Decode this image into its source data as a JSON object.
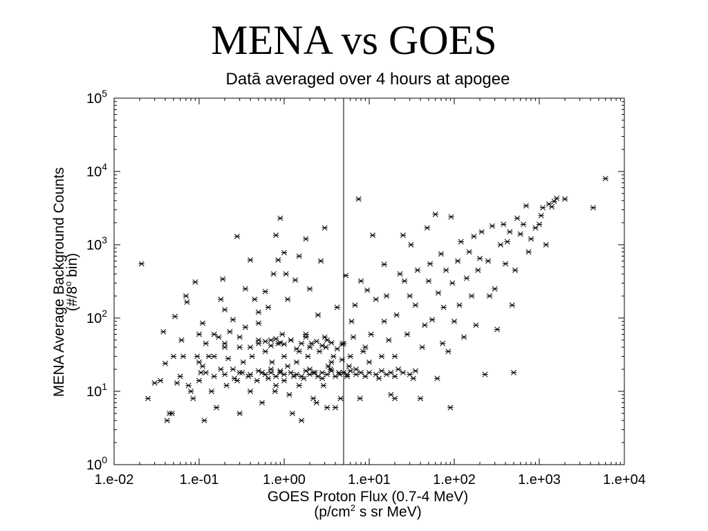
{
  "slide": {
    "title": "MENA vs GOES"
  },
  "chart_data": {
    "type": "scatter",
    "title": "Datā averaged over 4 hours at apogee",
    "xlabel": "GOES Proton Flux (0.7-4 MeV)",
    "xlabel_units": {
      "pre": "(p/cm",
      "sup": "2",
      "post": " s sr MeV)"
    },
    "ylabel": "MENA Average Background Counts",
    "ylabel_units": {
      "pre": "(#/8",
      "sup": "o",
      "post": " bin)"
    },
    "x_scale": "log",
    "y_scale": "log",
    "xlim": [
      0.01,
      10000
    ],
    "ylim": [
      1,
      100000
    ],
    "x_tick_labels": [
      "1.e-02",
      "1.e-01",
      "1.e+00",
      "1.e+01",
      "1.e+02",
      "1.e+03",
      "1.e+04"
    ],
    "y_tick_labels": [
      {
        "base": "10",
        "exp": "0"
      },
      {
        "base": "10",
        "exp": "1"
      },
      {
        "base": "10",
        "exp": "2"
      },
      {
        "base": "10",
        "exp": "3"
      },
      {
        "base": "10",
        "exp": "4"
      },
      {
        "base": "10",
        "exp": "5"
      }
    ],
    "reference_line_x": 5,
    "marker": "asterisk",
    "marker_color": "#000000",
    "grid": false,
    "points": [
      [
        0.021,
        550
      ],
      [
        0.025,
        8
      ],
      [
        0.03,
        13
      ],
      [
        0.035,
        14
      ],
      [
        0.038,
        65
      ],
      [
        0.04,
        24
      ],
      [
        0.042,
        4
      ],
      [
        0.045,
        5
      ],
      [
        0.048,
        5
      ],
      [
        0.05,
        30
      ],
      [
        0.052,
        105
      ],
      [
        0.055,
        13
      ],
      [
        0.06,
        16
      ],
      [
        0.062,
        50
      ],
      [
        0.065,
        30
      ],
      [
        0.07,
        200
      ],
      [
        0.072,
        165
      ],
      [
        0.075,
        12
      ],
      [
        0.08,
        10
      ],
      [
        0.085,
        8
      ],
      [
        0.09,
        310
      ],
      [
        0.095,
        30
      ],
      [
        0.1,
        25
      ],
      [
        0.1,
        60
      ],
      [
        0.105,
        18
      ],
      [
        0.11,
        22
      ],
      [
        0.11,
        85
      ],
      [
        0.115,
        4
      ],
      [
        0.12,
        45
      ],
      [
        0.13,
        30
      ],
      [
        0.14,
        10
      ],
      [
        0.15,
        30
      ],
      [
        0.15,
        60
      ],
      [
        0.16,
        6
      ],
      [
        0.17,
        55
      ],
      [
        0.18,
        180
      ],
      [
        0.18,
        20
      ],
      [
        0.19,
        340
      ],
      [
        0.2,
        40
      ],
      [
        0.2,
        130
      ],
      [
        0.21,
        12
      ],
      [
        0.22,
        28
      ],
      [
        0.23,
        65
      ],
      [
        0.25,
        95
      ],
      [
        0.26,
        15
      ],
      [
        0.28,
        14
      ],
      [
        0.28,
        1300
      ],
      [
        0.3,
        40
      ],
      [
        0.3,
        5
      ],
      [
        0.32,
        18
      ],
      [
        0.33,
        25
      ],
      [
        0.35,
        75
      ],
      [
        0.35,
        250
      ],
      [
        0.38,
        16
      ],
      [
        0.4,
        620
      ],
      [
        0.4,
        10
      ],
      [
        0.42,
        30
      ],
      [
        0.45,
        180
      ],
      [
        0.48,
        14
      ],
      [
        0.5,
        45
      ],
      [
        0.5,
        120
      ],
      [
        0.5,
        85
      ],
      [
        0.55,
        18
      ],
      [
        0.55,
        7
      ],
      [
        0.6,
        35
      ],
      [
        0.6,
        230
      ],
      [
        0.65,
        15
      ],
      [
        0.65,
        140
      ],
      [
        0.7,
        50
      ],
      [
        0.7,
        20
      ],
      [
        0.72,
        25
      ],
      [
        0.75,
        400
      ],
      [
        0.78,
        10
      ],
      [
        0.8,
        12
      ],
      [
        0.8,
        1350
      ],
      [
        0.85,
        45
      ],
      [
        0.85,
        620
      ],
      [
        0.9,
        2300
      ],
      [
        0.9,
        18
      ],
      [
        0.95,
        60
      ],
      [
        1.0,
        30
      ],
      [
        1.0,
        14
      ],
      [
        1.0,
        780
      ],
      [
        1.05,
        400
      ],
      [
        1.1,
        180
      ],
      [
        1.1,
        22
      ],
      [
        1.15,
        9
      ],
      [
        1.2,
        50
      ],
      [
        1.25,
        5
      ],
      [
        1.3,
        16
      ],
      [
        1.35,
        330
      ],
      [
        1.4,
        25
      ],
      [
        1.5,
        700
      ],
      [
        1.5,
        35
      ],
      [
        1.5,
        12
      ],
      [
        1.6,
        4
      ],
      [
        1.7,
        15
      ],
      [
        1.8,
        1200
      ],
      [
        1.8,
        60
      ],
      [
        1.9,
        30
      ],
      [
        2.0,
        20
      ],
      [
        2.0,
        250
      ],
      [
        2.1,
        45
      ],
      [
        2.2,
        8
      ],
      [
        2.3,
        18
      ],
      [
        2.4,
        7
      ],
      [
        2.5,
        110
      ],
      [
        2.6,
        35
      ],
      [
        2.7,
        600
      ],
      [
        2.8,
        15
      ],
      [
        2.9,
        12
      ],
      [
        3.0,
        1700
      ],
      [
        3.0,
        55
      ],
      [
        3.1,
        40
      ],
      [
        3.2,
        6
      ],
      [
        3.3,
        22
      ],
      [
        3.5,
        20
      ],
      [
        3.6,
        25
      ],
      [
        3.8,
        30
      ],
      [
        4.0,
        6
      ],
      [
        4.2,
        140
      ],
      [
        4.4,
        18
      ],
      [
        4.6,
        8
      ],
      [
        4.8,
        27
      ],
      [
        5.0,
        45
      ],
      [
        5.3,
        380
      ],
      [
        5.5,
        16
      ],
      [
        5.8,
        22
      ],
      [
        6.0,
        30
      ],
      [
        6.2,
        90
      ],
      [
        6.5,
        55
      ],
      [
        6.8,
        150
      ],
      [
        7.0,
        20
      ],
      [
        7.5,
        4200
      ],
      [
        7.8,
        8
      ],
      [
        8.0,
        320
      ],
      [
        8.5,
        35
      ],
      [
        9.0,
        40
      ],
      [
        9.5,
        240
      ],
      [
        10,
        25
      ],
      [
        10.5,
        60
      ],
      [
        11,
        1350
      ],
      [
        12,
        180
      ],
      [
        13,
        15
      ],
      [
        14,
        30
      ],
      [
        15,
        90
      ],
      [
        15,
        540
      ],
      [
        16,
        200
      ],
      [
        17,
        50
      ],
      [
        18,
        9
      ],
      [
        20,
        30
      ],
      [
        20,
        8
      ],
      [
        21,
        110
      ],
      [
        22,
        20
      ],
      [
        23,
        400
      ],
      [
        25,
        1350
      ],
      [
        26,
        320
      ],
      [
        28,
        60
      ],
      [
        30,
        200
      ],
      [
        31,
        1000
      ],
      [
        33,
        15
      ],
      [
        35,
        150
      ],
      [
        37,
        450
      ],
      [
        40,
        8
      ],
      [
        42,
        40
      ],
      [
        45,
        80
      ],
      [
        48,
        1700
      ],
      [
        50,
        320
      ],
      [
        52,
        550
      ],
      [
        55,
        95
      ],
      [
        60,
        2600
      ],
      [
        63,
        15
      ],
      [
        65,
        220
      ],
      [
        70,
        750
      ],
      [
        73,
        45
      ],
      [
        75,
        140
      ],
      [
        80,
        450
      ],
      [
        85,
        35
      ],
      [
        90,
        6
      ],
      [
        92,
        2400
      ],
      [
        95,
        300
      ],
      [
        100,
        90
      ],
      [
        110,
        600
      ],
      [
        115,
        150
      ],
      [
        120,
        1100
      ],
      [
        130,
        55
      ],
      [
        140,
        350
      ],
      [
        150,
        800
      ],
      [
        160,
        200
      ],
      [
        170,
        1300
      ],
      [
        180,
        80
      ],
      [
        190,
        450
      ],
      [
        200,
        650
      ],
      [
        210,
        1500
      ],
      [
        230,
        17
      ],
      [
        250,
        600
      ],
      [
        260,
        200
      ],
      [
        280,
        1800
      ],
      [
        300,
        250
      ],
      [
        320,
        70
      ],
      [
        350,
        1000
      ],
      [
        380,
        1900
      ],
      [
        400,
        550
      ],
      [
        420,
        1100
      ],
      [
        450,
        1500
      ],
      [
        480,
        150
      ],
      [
        500,
        18
      ],
      [
        520,
        450
      ],
      [
        550,
        2300
      ],
      [
        600,
        1400
      ],
      [
        650,
        1900
      ],
      [
        700,
        3400
      ],
      [
        750,
        800
      ],
      [
        800,
        1200
      ],
      [
        900,
        1700
      ],
      [
        1000,
        1900
      ],
      [
        1050,
        2500
      ],
      [
        1100,
        3200
      ],
      [
        1200,
        1000
      ],
      [
        1300,
        3600
      ],
      [
        1400,
        3300
      ],
      [
        1500,
        3900
      ],
      [
        1600,
        4300
      ],
      [
        2000,
        4200
      ],
      [
        4300,
        3200
      ],
      [
        6000,
        8000
      ],
      [
        0.1,
        14
      ],
      [
        0.12,
        18
      ],
      [
        0.15,
        16
      ],
      [
        0.2,
        17
      ],
      [
        0.25,
        20
      ],
      [
        0.3,
        18
      ],
      [
        0.4,
        17
      ],
      [
        0.5,
        19
      ],
      [
        0.6,
        17
      ],
      [
        0.7,
        18
      ],
      [
        0.8,
        16
      ],
      [
        0.9,
        19
      ],
      [
        1.0,
        17
      ],
      [
        1.2,
        18
      ],
      [
        1.4,
        17
      ],
      [
        1.6,
        16
      ],
      [
        1.8,
        19
      ],
      [
        2.0,
        17
      ],
      [
        2.2,
        18
      ],
      [
        2.5,
        16
      ],
      [
        2.8,
        18
      ],
      [
        3.2,
        17
      ],
      [
        3.6,
        19
      ],
      [
        4.0,
        16
      ],
      [
        4.5,
        17
      ],
      [
        5.0,
        18
      ],
      [
        5.5,
        17
      ],
      [
        6.0,
        19
      ],
      [
        7.0,
        17
      ],
      [
        8.0,
        18
      ],
      [
        9.0,
        16
      ],
      [
        10,
        18
      ],
      [
        12,
        17
      ],
      [
        14,
        19
      ],
      [
        16,
        17
      ],
      [
        18,
        18
      ],
      [
        20,
        16
      ],
      [
        25,
        18
      ],
      [
        30,
        17
      ],
      [
        35,
        19
      ],
      [
        0.2,
        45
      ],
      [
        0.3,
        55
      ],
      [
        0.4,
        40
      ],
      [
        0.5,
        50
      ],
      [
        0.6,
        48
      ],
      [
        0.7,
        42
      ],
      [
        0.8,
        52
      ],
      [
        0.9,
        46
      ],
      [
        1.0,
        44
      ],
      [
        1.2,
        50
      ],
      [
        1.4,
        38
      ],
      [
        1.6,
        45
      ],
      [
        1.8,
        55
      ],
      [
        2.0,
        40
      ],
      [
        2.4,
        48
      ],
      [
        2.8,
        42
      ],
      [
        3.2,
        50
      ],
      [
        3.6,
        46
      ],
      [
        4.2,
        38
      ],
      [
        4.8,
        44
      ]
    ]
  }
}
